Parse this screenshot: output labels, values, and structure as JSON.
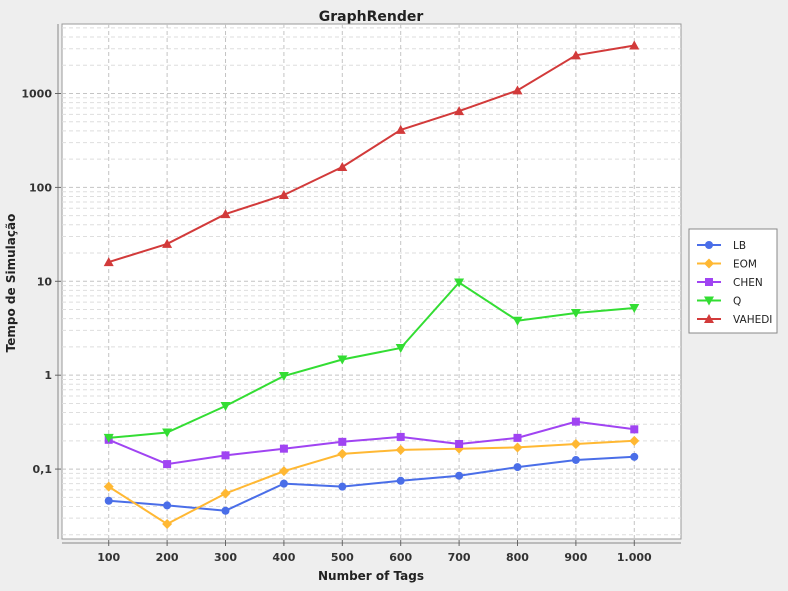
{
  "chart_data": {
    "type": "line",
    "title": "GraphRender",
    "xlabel": "Number of Tags",
    "ylabel": "Tempo de Simulação",
    "y_scale": "log",
    "ylim": [
      0.018,
      5500
    ],
    "xlim": [
      20,
      1080
    ],
    "grid": true,
    "legend_position": "right",
    "x": [
      100,
      200,
      300,
      400,
      500,
      600,
      700,
      800,
      900,
      1000
    ],
    "x_tick_labels": [
      "100",
      "200",
      "300",
      "400",
      "500",
      "600",
      "700",
      "800",
      "900",
      "1.000"
    ],
    "y_ticks": [
      0.1,
      1,
      10,
      100,
      1000
    ],
    "y_tick_labels": [
      "0,1",
      "1",
      "10",
      "100",
      "1000"
    ],
    "series": [
      {
        "name": "LB",
        "color": "#4a6ee8",
        "marker": "circle",
        "values": [
          0.046,
          0.041,
          0.036,
          0.07,
          0.065,
          0.075,
          0.085,
          0.105,
          0.125,
          0.135
        ]
      },
      {
        "name": "EOM",
        "color": "#ffb833",
        "marker": "diamond",
        "values": [
          0.065,
          0.026,
          0.055,
          0.095,
          0.145,
          0.16,
          0.165,
          0.17,
          0.185,
          0.2
        ]
      },
      {
        "name": "CHEN",
        "color": "#a044f2",
        "marker": "square",
        "values": [
          0.205,
          0.113,
          0.14,
          0.165,
          0.195,
          0.22,
          0.185,
          0.215,
          0.32,
          0.265
        ]
      },
      {
        "name": "Q",
        "color": "#33dd33",
        "marker": "triangle-down",
        "values": [
          0.215,
          0.245,
          0.47,
          0.98,
          1.47,
          1.95,
          9.7,
          3.8,
          4.6,
          5.2
        ]
      },
      {
        "name": "VAHEDI",
        "color": "#d23a3a",
        "marker": "triangle-up",
        "values": [
          16,
          25,
          52,
          83,
          165,
          410,
          650,
          1080,
          2550,
          3250
        ]
      }
    ]
  }
}
